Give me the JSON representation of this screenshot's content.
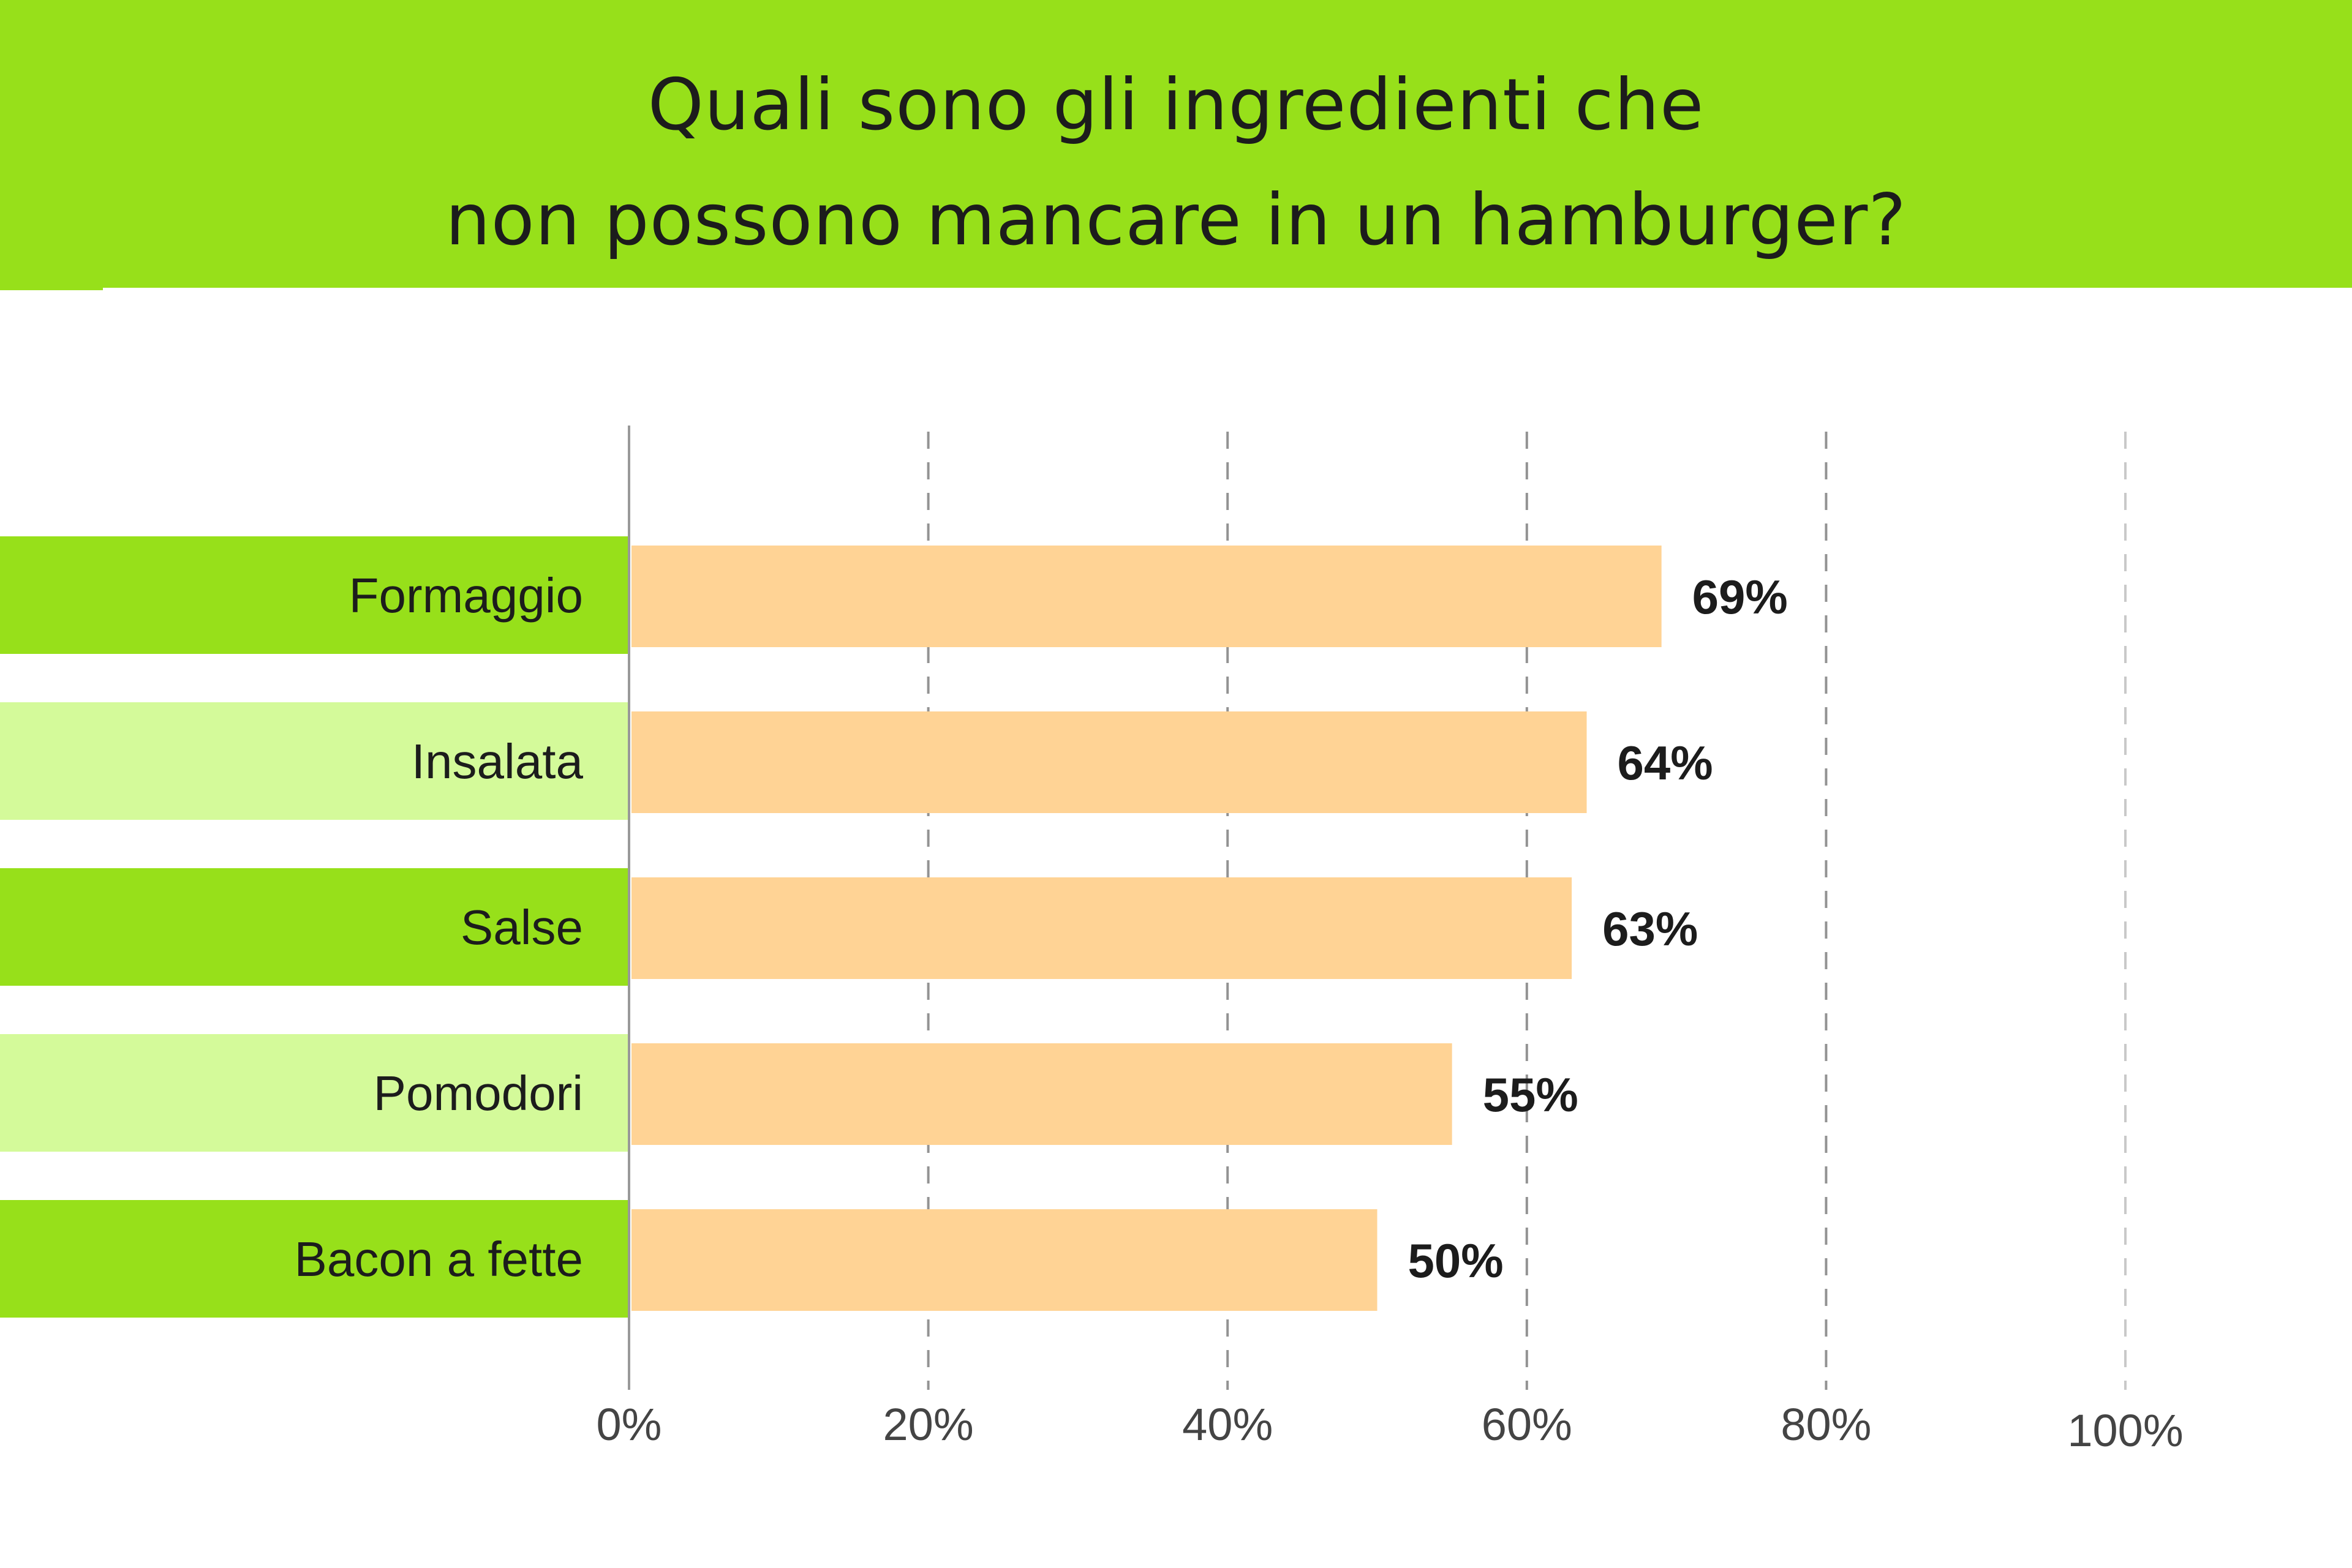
{
  "title": {
    "line1": "Quali sono gli ingredienti che",
    "line2": "non possono mancare in un hamburger?"
  },
  "colors": {
    "header": "#97e01a",
    "label_dark": "#97e01a",
    "label_light": "#d4fa9a",
    "bar": "#ffd395",
    "grid": "#888888",
    "axis": "#999999"
  },
  "chart_data": {
    "type": "bar",
    "orientation": "horizontal",
    "title": "Quali sono gli ingredienti che non possono mancare in un hamburger?",
    "categories": [
      "Formaggio",
      "Insalata",
      "Salse",
      "Pomodori",
      "Bacon a fette"
    ],
    "values": [
      69,
      64,
      63,
      55,
      50
    ],
    "value_labels": [
      "69%",
      "64%",
      "63%",
      "55%",
      "50%"
    ],
    "xlim": [
      0,
      100
    ],
    "x_ticks": [
      "0%",
      "20%",
      "40%",
      "60%",
      "80%",
      "100%"
    ],
    "xlabel": "",
    "ylabel": "",
    "grid": "dashed vertical"
  }
}
